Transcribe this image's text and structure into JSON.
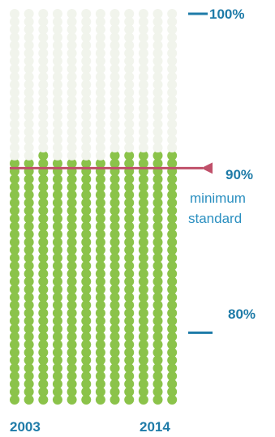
{
  "chart_data": {
    "type": "dot-matrix",
    "title": "",
    "x_start_label": "2003",
    "x_end_label": "2014",
    "years": [
      "2003",
      "2004",
      "2005",
      "2006",
      "2007",
      "2008",
      "2009",
      "2010",
      "2011",
      "2012",
      "2013",
      "2014"
    ],
    "values": [
      90.5,
      90.5,
      91.0,
      90.5,
      90.5,
      90.5,
      90.5,
      91.0,
      91.0,
      91.0,
      91.0,
      91.0
    ],
    "ylim": [
      75,
      100
    ],
    "dot_step_percent": 0.5,
    "reference_line": {
      "value": 90,
      "label": "90%",
      "sublabel_1": "minimum",
      "sublabel_2": "standard"
    },
    "ticks": [
      {
        "value": 100,
        "label": "100%"
      },
      {
        "value": 80,
        "label": "80%"
      }
    ],
    "colors": {
      "filled_dot": "#8bc34a",
      "empty_dot": "#f1f4ec",
      "reference_line": "#c0506a",
      "tick_marks": "#1e7ba8",
      "labels": "#1e7ba8",
      "sublabel": "#2a8fc0"
    }
  }
}
